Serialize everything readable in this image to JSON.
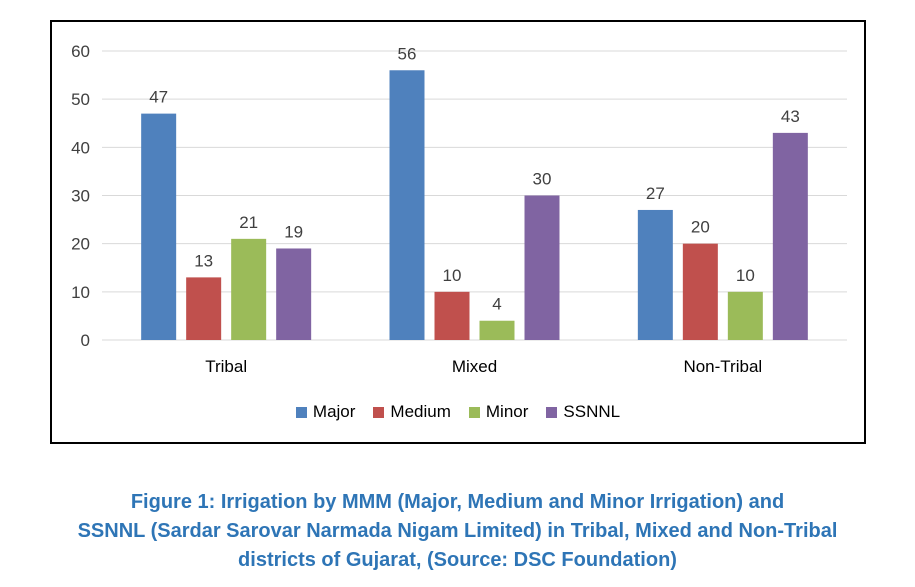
{
  "chart_data": {
    "type": "bar",
    "categories": [
      "Tribal",
      "Mixed",
      "Non-Tribal"
    ],
    "series": [
      {
        "name": "Major",
        "values": [
          47,
          56,
          27
        ],
        "color": "#4F81BD"
      },
      {
        "name": "Medium",
        "values": [
          13,
          10,
          20
        ],
        "color": "#C0504D"
      },
      {
        "name": "Minor",
        "values": [
          21,
          4,
          10
        ],
        "color": "#9BBB59"
      },
      {
        "name": "SSNNL",
        "values": [
          19,
          30,
          43
        ],
        "color": "#8064A2"
      }
    ],
    "ylim": [
      0,
      60
    ],
    "yticks": [
      0,
      10,
      20,
      30,
      40,
      50,
      60
    ],
    "grid": true,
    "legend_position": "bottom",
    "data_labels": true
  },
  "caption": {
    "line1": "Figure 1: Irrigation by MMM (Major, Medium and Minor Irrigation) and",
    "line2": "SSNNL (Sardar Sarovar Narmada Nigam Limited) in Tribal, Mixed and Non-Tribal",
    "line3": "districts of Gujarat,  (Source: DSC Foundation)",
    "color": "#2E75B6"
  }
}
